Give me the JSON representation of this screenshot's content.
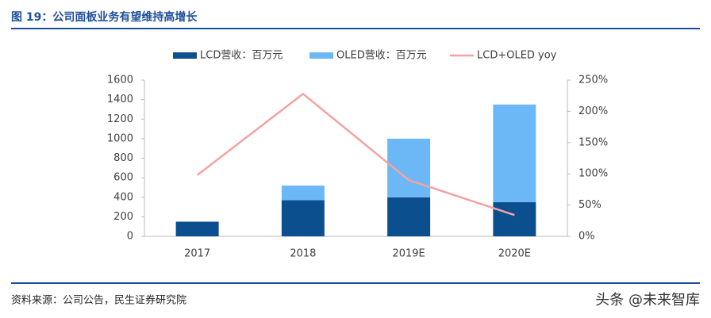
{
  "chart_data": {
    "type": "bar",
    "stacked": true,
    "title": "图 19：公司面板业务有望维持高增长",
    "source": "资料来源：公司公告，民生证券研究院",
    "watermark": "头条 @未来智库",
    "categories": [
      "2017",
      "2018",
      "2019E",
      "2020E"
    ],
    "series": [
      {
        "name": "LCD营收：百万元",
        "type": "bar",
        "color": "#0b4f8e",
        "values": [
          150,
          370,
          400,
          350
        ]
      },
      {
        "name": "OLED营收：百万元",
        "type": "bar",
        "color": "#6cb8f6",
        "values": [
          0,
          150,
          600,
          1000
        ]
      },
      {
        "name": "LCD+OLED yoy",
        "type": "line",
        "axis": "y2",
        "color": "#f4a2a2",
        "values": [
          98,
          228,
          90,
          34
        ]
      }
    ],
    "ylim": [
      0,
      1600
    ],
    "yticks": [
      0,
      200,
      400,
      600,
      800,
      1000,
      1200,
      1400,
      1600
    ],
    "y2lim": [
      0,
      250
    ],
    "y2ticks": [
      {
        "value": 0,
        "label": "0%"
      },
      {
        "value": 50,
        "label": "50%"
      },
      {
        "value": 100,
        "label": "100%"
      },
      {
        "value": 150,
        "label": "150%"
      },
      {
        "value": 200,
        "label": "200%"
      },
      {
        "value": 250,
        "label": "250%"
      }
    ],
    "legend": "top",
    "grid": false
  }
}
